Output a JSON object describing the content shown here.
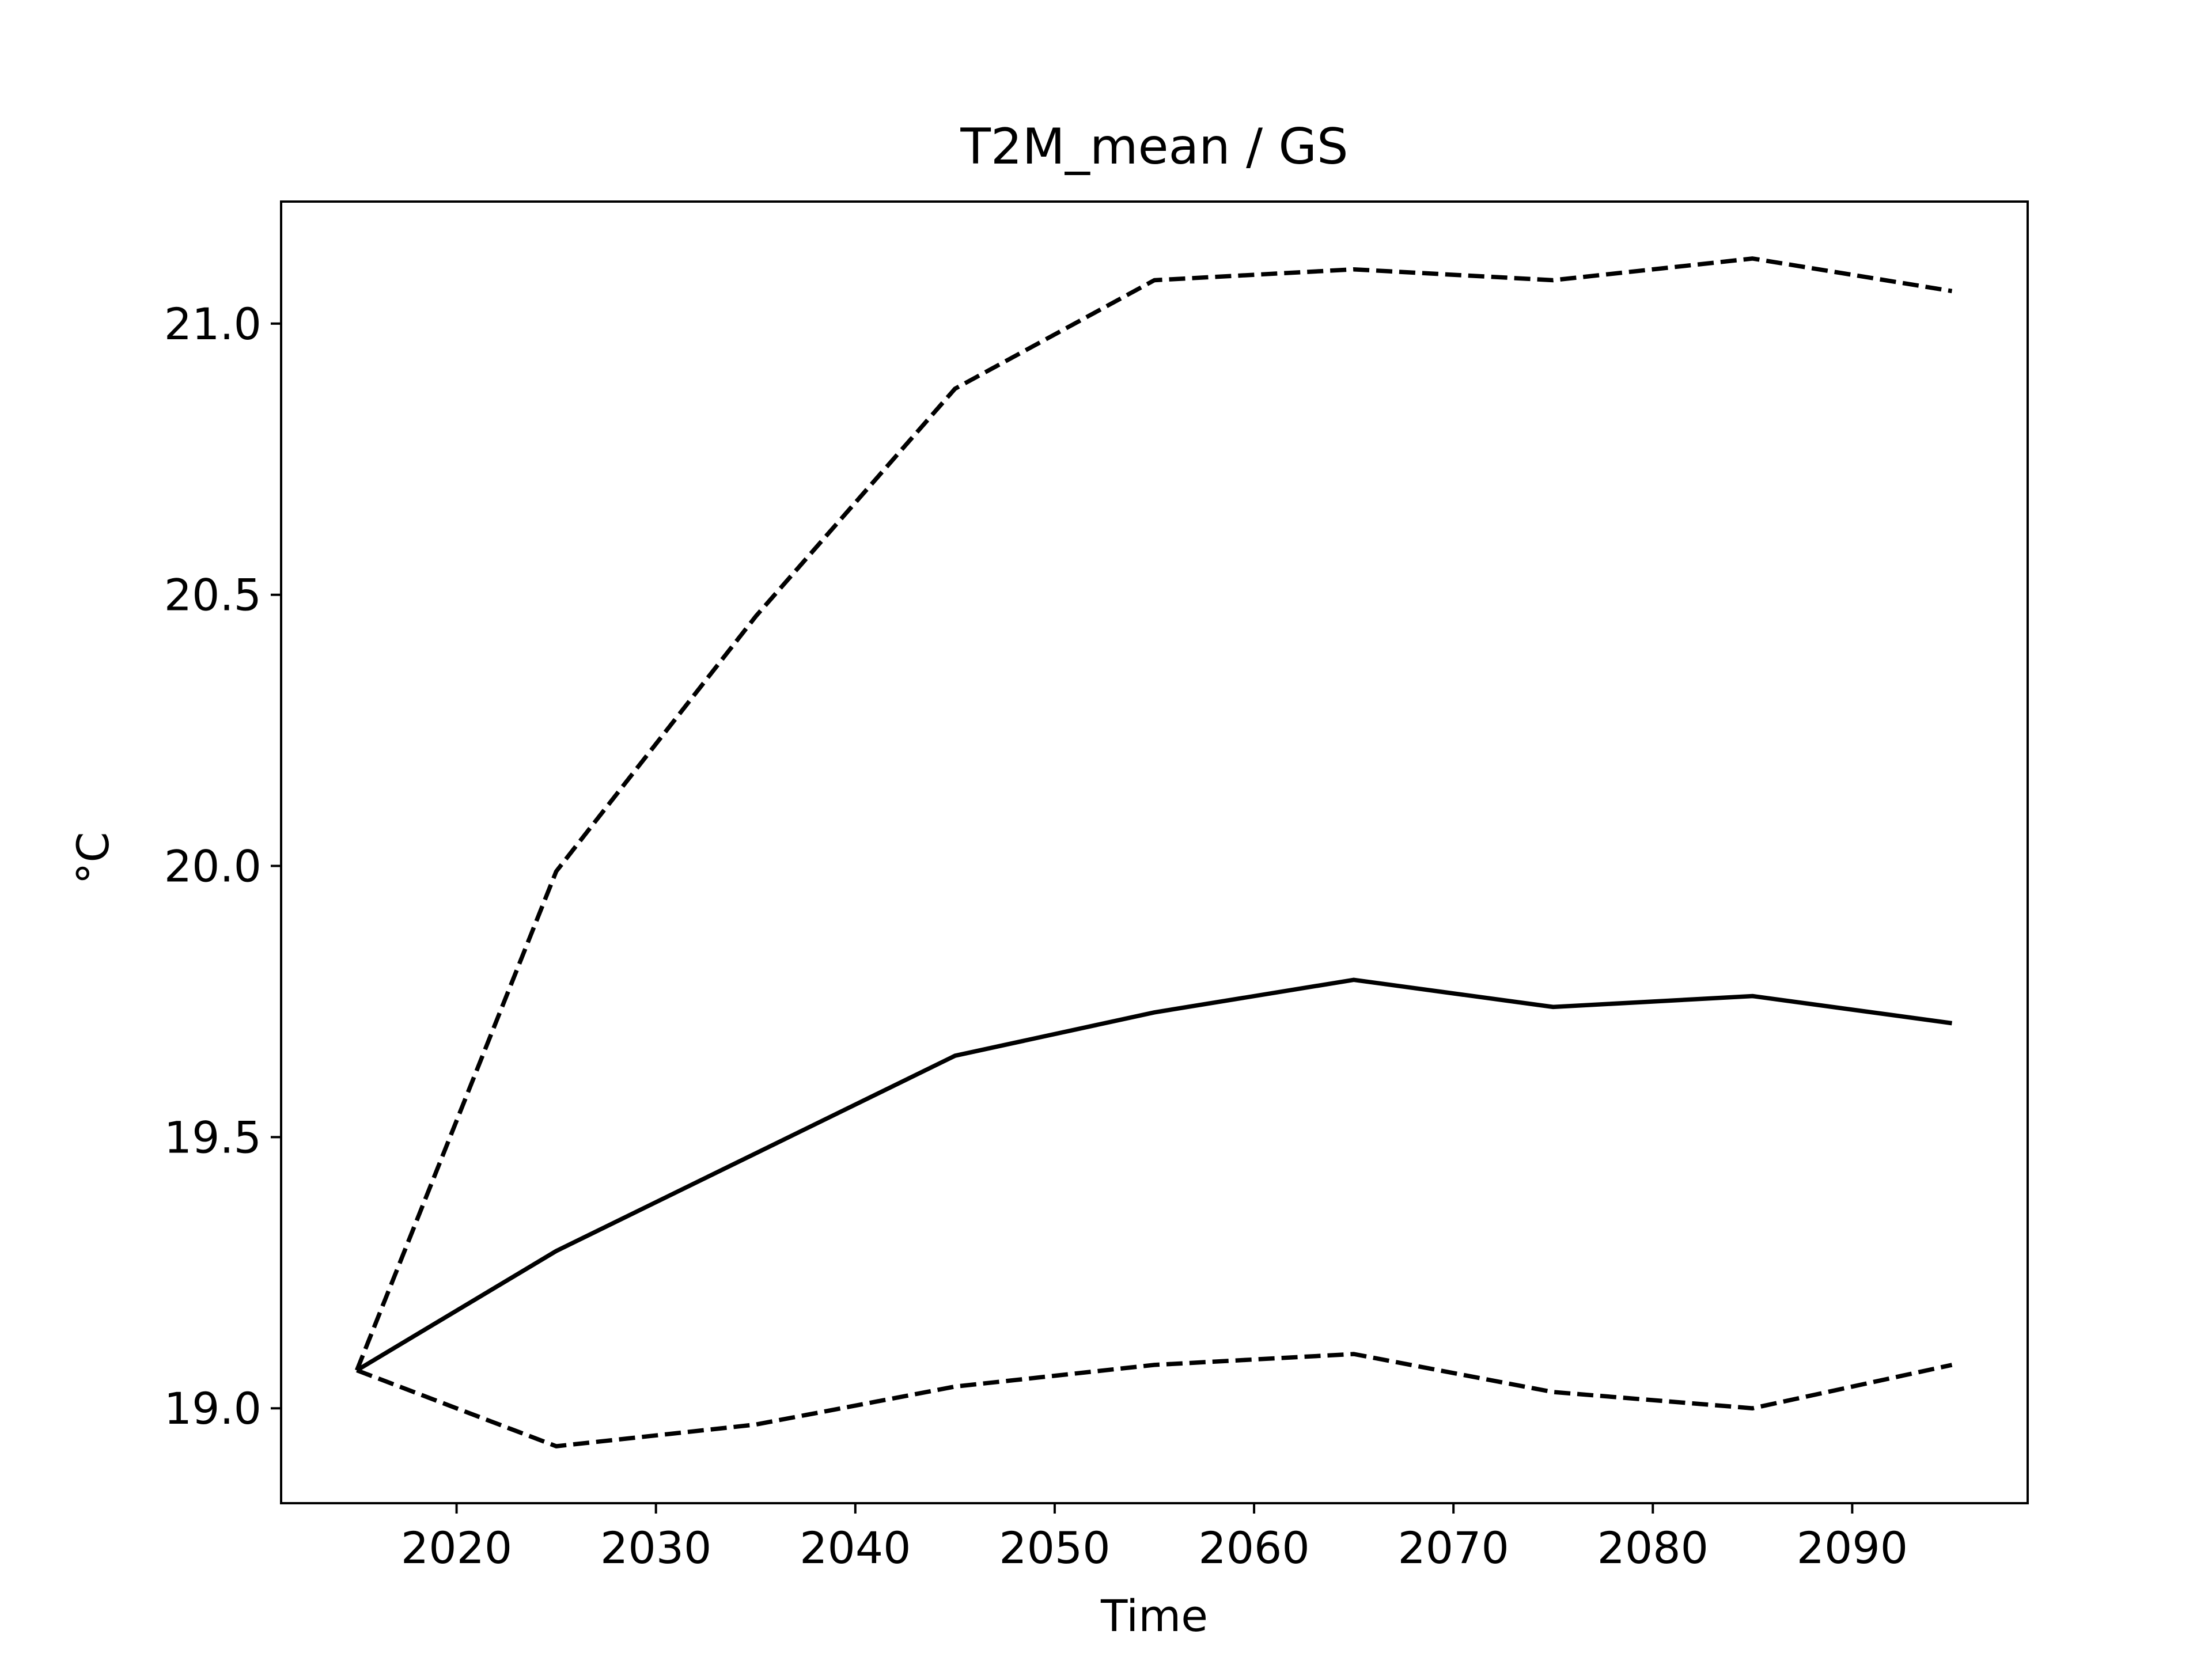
{
  "chart_data": {
    "type": "line",
    "title": "T2M_mean / GS",
    "xlabel": "Time",
    "ylabel": "°C",
    "xlim": [
      2011.2,
      2098.8
    ],
    "ylim": [
      18.825,
      21.225
    ],
    "grid": false,
    "legend": "none",
    "xticks": [
      2020,
      2030,
      2040,
      2050,
      2060,
      2070,
      2080,
      2090
    ],
    "xtick_labels": [
      "2020",
      "2030",
      "2040",
      "2050",
      "2060",
      "2070",
      "2080",
      "2090"
    ],
    "yticks": [
      19.0,
      19.5,
      20.0,
      20.5,
      21.0
    ],
    "ytick_labels": [
      "19.0",
      "19.5",
      "20.0",
      "20.5",
      "21.0"
    ],
    "x": [
      2015,
      2025,
      2035,
      2045,
      2055,
      2065,
      2075,
      2085,
      2095
    ],
    "series": [
      {
        "style": "dashed",
        "color": "#000000",
        "values": [
          19.07,
          19.99,
          20.46,
          20.88,
          21.08,
          21.1,
          21.08,
          21.12,
          21.06
        ]
      },
      {
        "style": "solid",
        "color": "#000000",
        "values": [
          19.07,
          19.29,
          19.47,
          19.65,
          19.73,
          19.79,
          19.74,
          19.76,
          19.71
        ]
      },
      {
        "style": "dashed",
        "color": "#000000",
        "values": [
          19.07,
          18.93,
          18.97,
          19.04,
          19.08,
          19.1,
          19.03,
          19.0,
          19.08
        ]
      }
    ]
  }
}
